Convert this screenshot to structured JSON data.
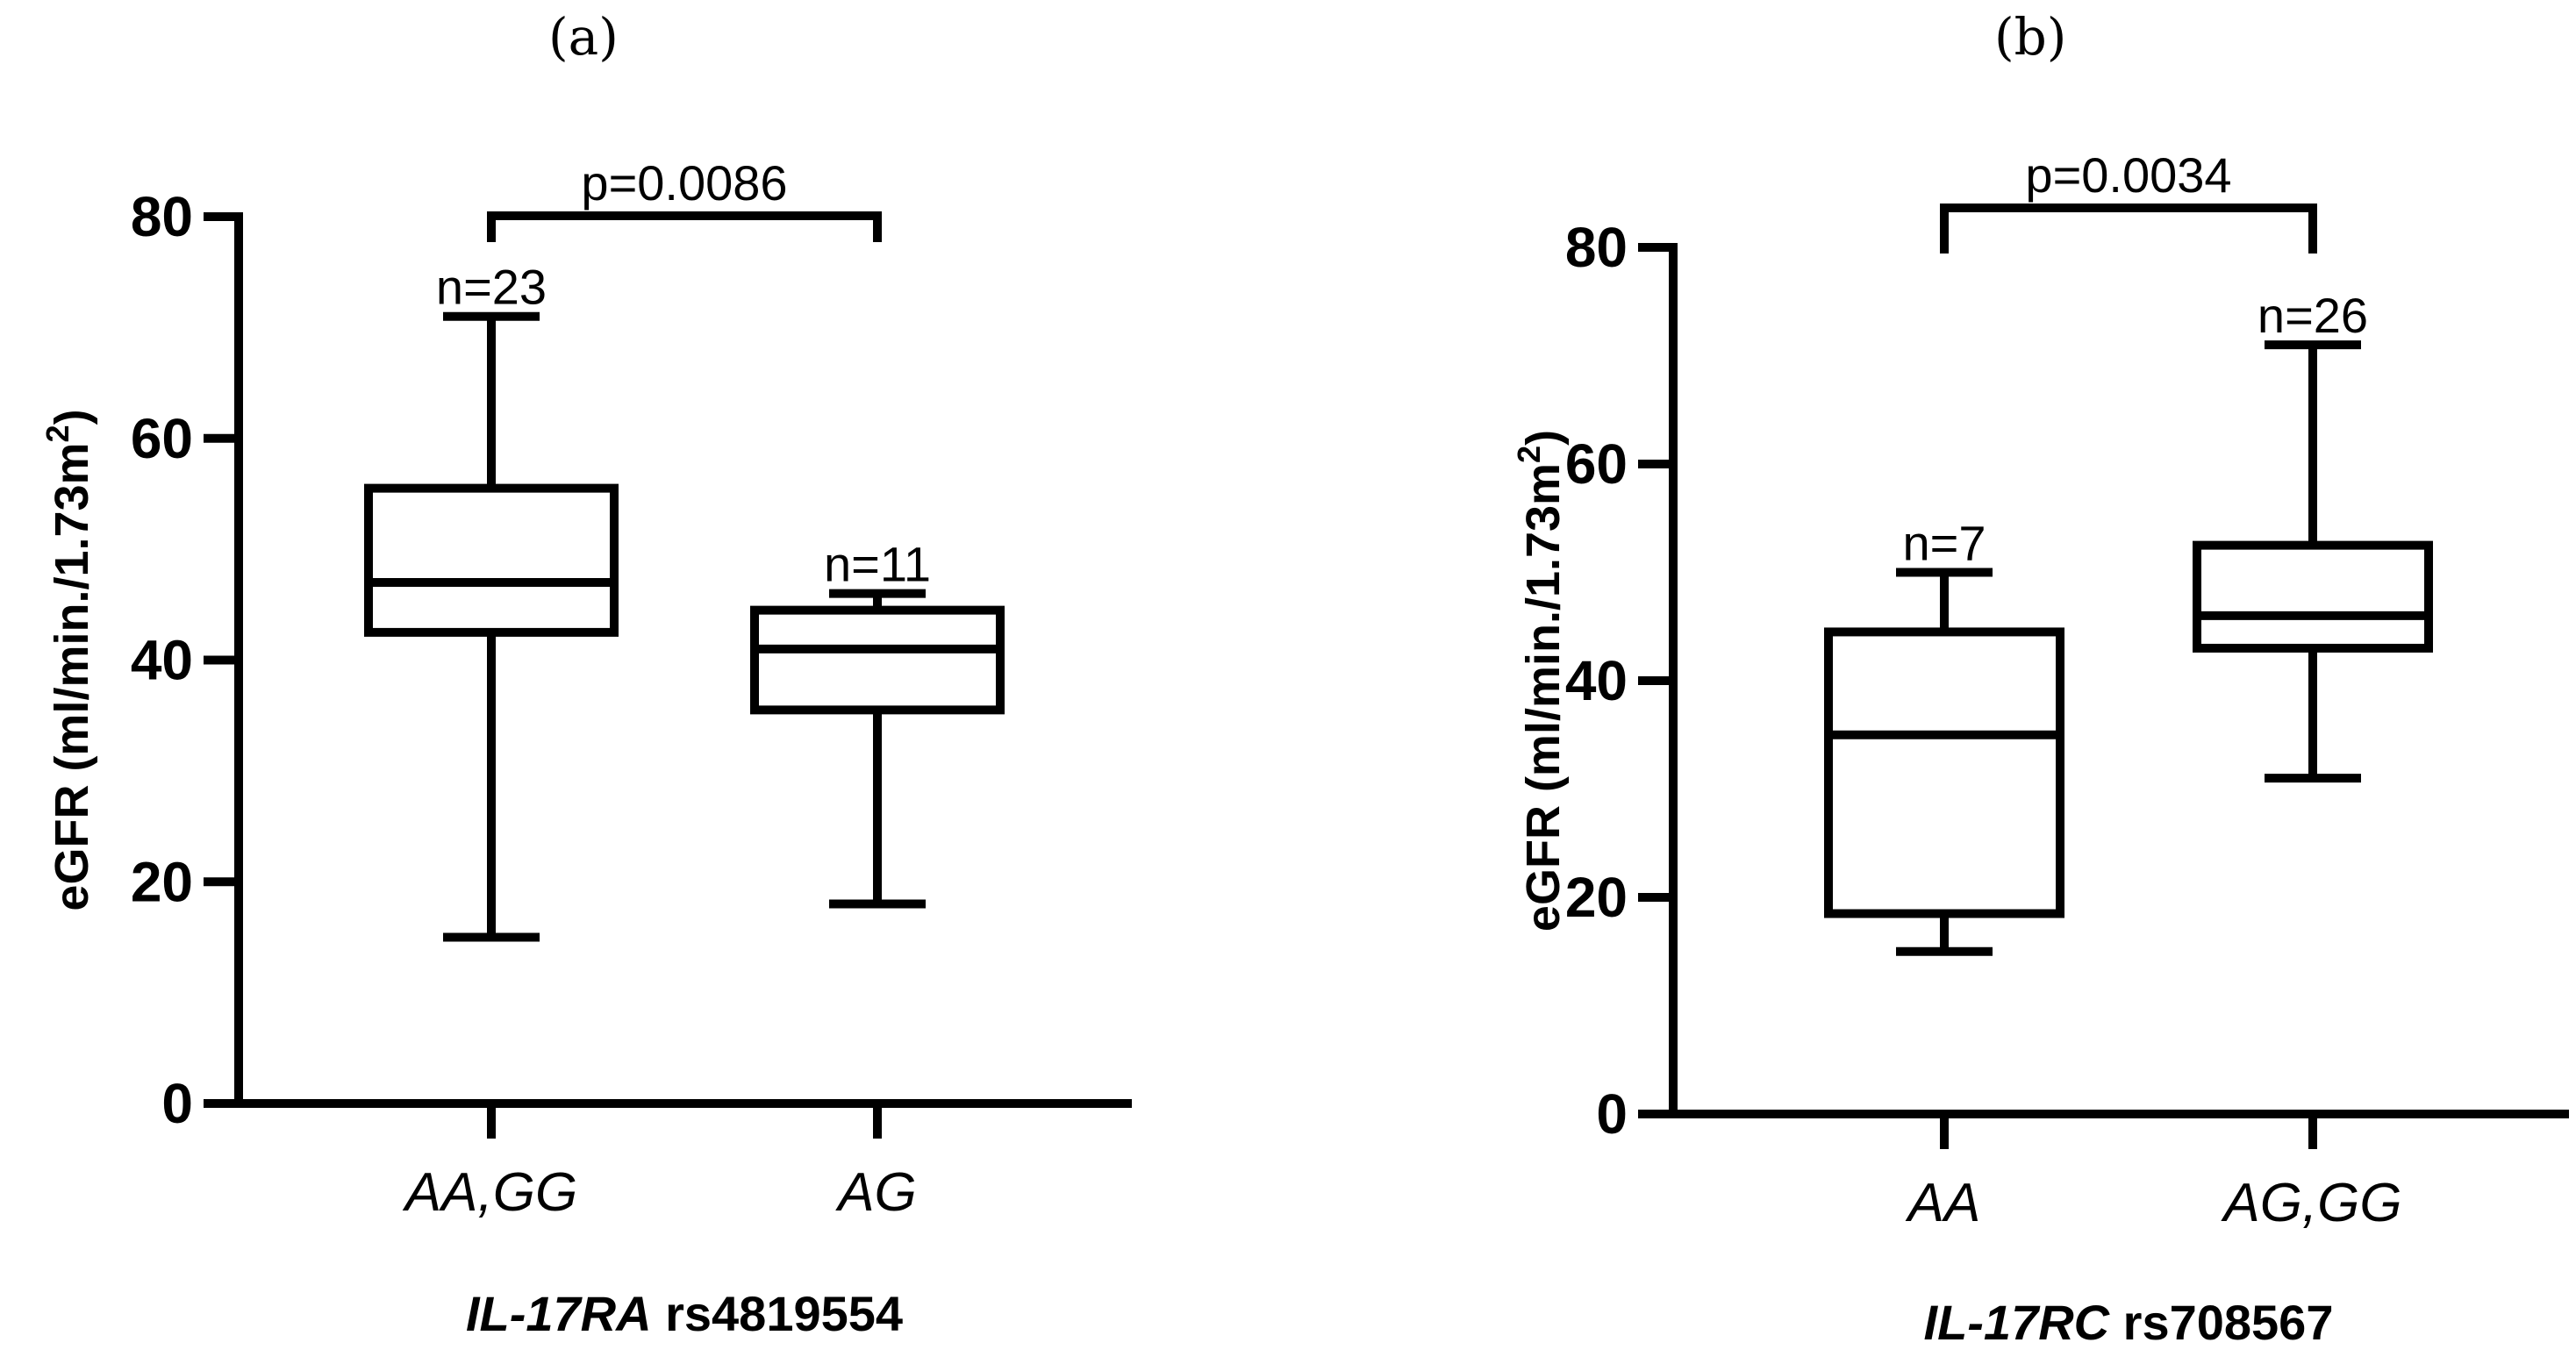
{
  "panels": [
    {
      "label": "(a)",
      "ylabel_pre": "eGFR (ml/min./1.73m",
      "ylabel_sup": "2",
      "ylabel_post": ")",
      "xlabel_italic": "IL-17RA",
      "xlabel_rest": " rs4819554",
      "pvalue": "p=0.0086"
    },
    {
      "label": "(b)",
      "ylabel_pre": "eGFR (ml/min./1.73m",
      "ylabel_sup": "2",
      "ylabel_post": ")",
      "xlabel_italic": "IL-17RC",
      "xlabel_rest": " rs708567",
      "pvalue": "p=0.0034"
    }
  ],
  "chart_data": [
    {
      "type": "box",
      "ylim": [
        0,
        80
      ],
      "yticks": [
        0,
        20,
        40,
        60,
        80
      ],
      "ylabel": "eGFR (ml/min./1.73m2)",
      "xlabel": "IL-17RA rs4819554",
      "categories": [
        "AA,GG",
        "AG"
      ],
      "boxes": [
        {
          "category": "AA,GG",
          "n_label": "n=23",
          "min": 15,
          "q1": 42.5,
          "median": 47,
          "q3": 55.5,
          "max": 71
        },
        {
          "category": "AG",
          "n_label": "n=11",
          "min": 18,
          "q1": 35.5,
          "median": 41,
          "q3": 44.5,
          "max": 46
        }
      ],
      "comparison": {
        "from": "AA,GG",
        "to": "AG",
        "text": "p=0.0086"
      }
    },
    {
      "type": "box",
      "ylim": [
        0,
        80
      ],
      "yticks": [
        0,
        20,
        40,
        60,
        80
      ],
      "ylabel": "eGFR (ml/min./1.73m2)",
      "xlabel": "IL-17RC rs708567",
      "categories": [
        "AA",
        "AG,GG"
      ],
      "boxes": [
        {
          "category": "AA",
          "n_label": "n=7",
          "min": 15,
          "q1": 18.5,
          "median": 35,
          "q3": 44.5,
          "max": 50
        },
        {
          "category": "AG,GG",
          "n_label": "n=26",
          "min": 31,
          "q1": 43,
          "median": 46,
          "q3": 52.5,
          "max": 71
        }
      ],
      "comparison": {
        "from": "AA",
        "to": "AG,GG",
        "text": "p=0.0034"
      }
    }
  ]
}
